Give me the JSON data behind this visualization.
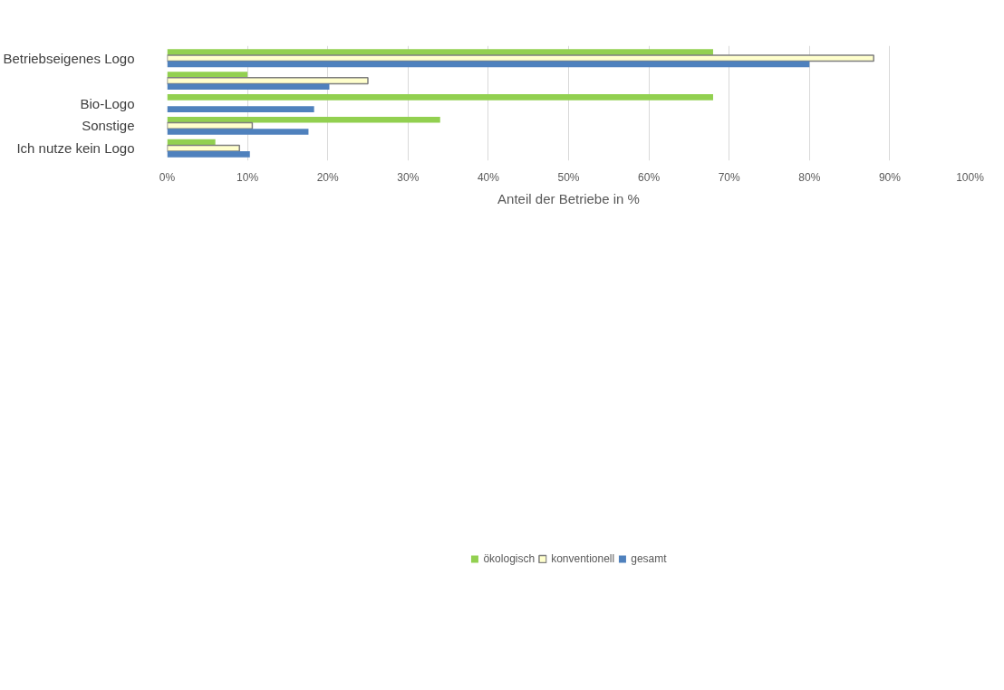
{
  "chart_data": {
    "type": "bar",
    "orientation": "horizontal",
    "xlabel": "Anteil der Betriebe in %",
    "categories": [
      "Betriebseigenes Logo",
      null,
      "Bio-Logo",
      "Sonstige",
      "Ich nutze kein Logo"
    ],
    "series": [
      {
        "name": "ökologisch",
        "color": "#92d050",
        "values": [
          68,
          10,
          68,
          34,
          6
        ]
      },
      {
        "name": "konventionell",
        "color": "#ffffcc",
        "values": [
          88,
          25,
          null,
          10.6,
          9
        ]
      },
      {
        "name": "gesamt",
        "color": "#4f81bd",
        "values": [
          80,
          20.2,
          18.3,
          17.6,
          10.3
        ]
      }
    ],
    "xlim": [
      0,
      100
    ],
    "xticks": [
      {
        "value": 0,
        "label": "0%"
      },
      {
        "value": 10,
        "label": "10%"
      },
      {
        "value": 20,
        "label": "20%"
      },
      {
        "value": 30,
        "label": "30%"
      },
      {
        "value": 40,
        "label": "40%"
      },
      {
        "value": 50,
        "label": "50%"
      },
      {
        "value": 60,
        "label": "60%"
      },
      {
        "value": 70,
        "label": "70%"
      },
      {
        "value": 80,
        "label": "80%"
      },
      {
        "value": 90,
        "label": "90%"
      },
      {
        "value": 100,
        "label": "100%"
      }
    ],
    "grid": "x",
    "legend": "bottom"
  }
}
